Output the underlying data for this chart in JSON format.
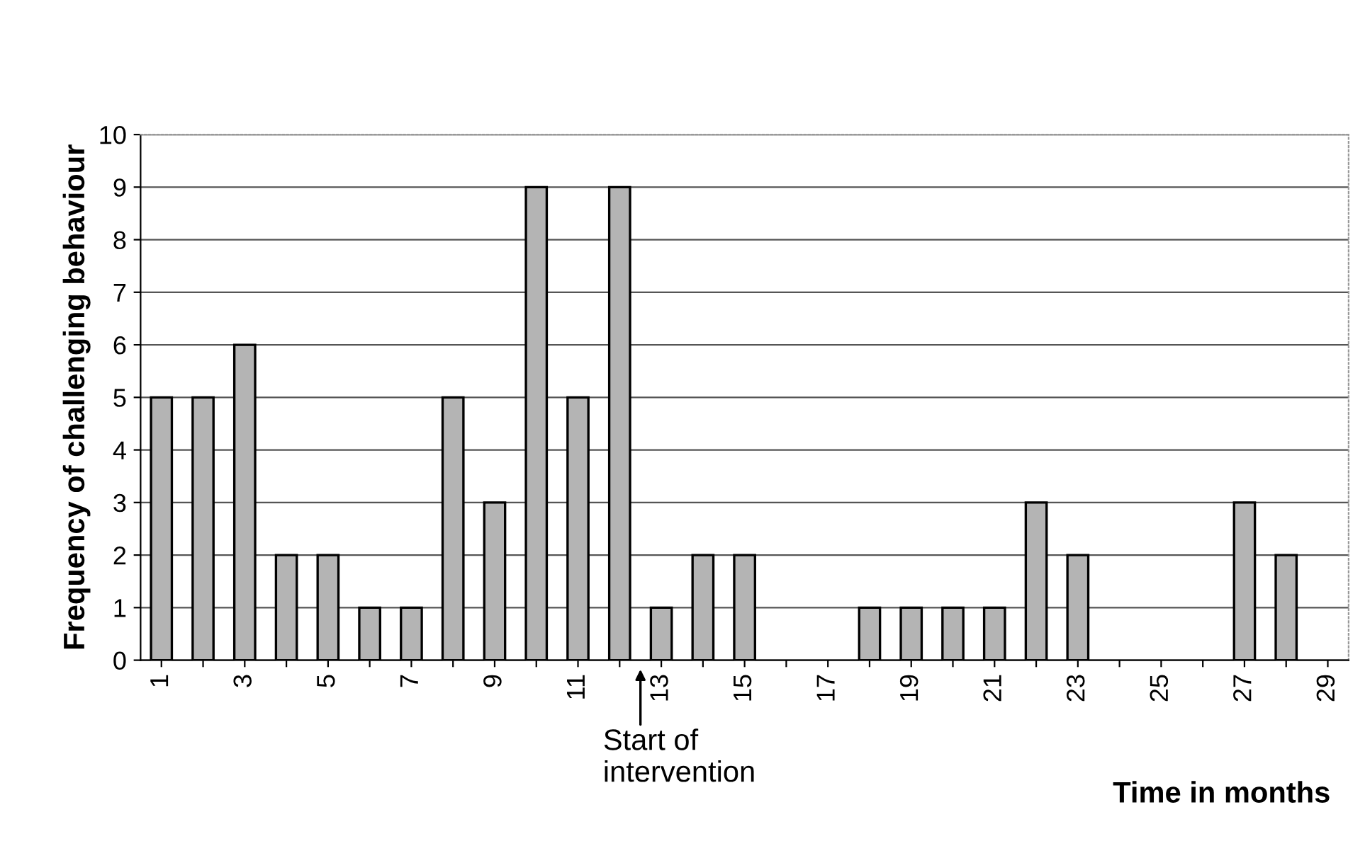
{
  "chart_data": {
    "type": "bar",
    "xlabel": "Time in months",
    "ylabel": "Frequency of challenging behaviour",
    "categories": [
      "1",
      null,
      "3",
      null,
      "5",
      null,
      "7",
      null,
      "9",
      null,
      "11",
      null,
      "13",
      null,
      "15",
      null,
      "17",
      null,
      "19",
      null,
      "21",
      null,
      "23",
      null,
      "25",
      null,
      "27",
      null,
      "29"
    ],
    "values": [
      5,
      5,
      6,
      2,
      2,
      1,
      1,
      5,
      3,
      9,
      5,
      9,
      1,
      2,
      2,
      0,
      0,
      1,
      1,
      1,
      1,
      3,
      2,
      0,
      0,
      0,
      3,
      2,
      0
    ],
    "color": "#b4b4b4",
    "ylim": [
      0,
      10
    ],
    "yticks": [
      0,
      1,
      2,
      3,
      4,
      5,
      6,
      7,
      8,
      9,
      10
    ],
    "grid": "y",
    "annotations": [
      "Start of\nintervention"
    ]
  }
}
